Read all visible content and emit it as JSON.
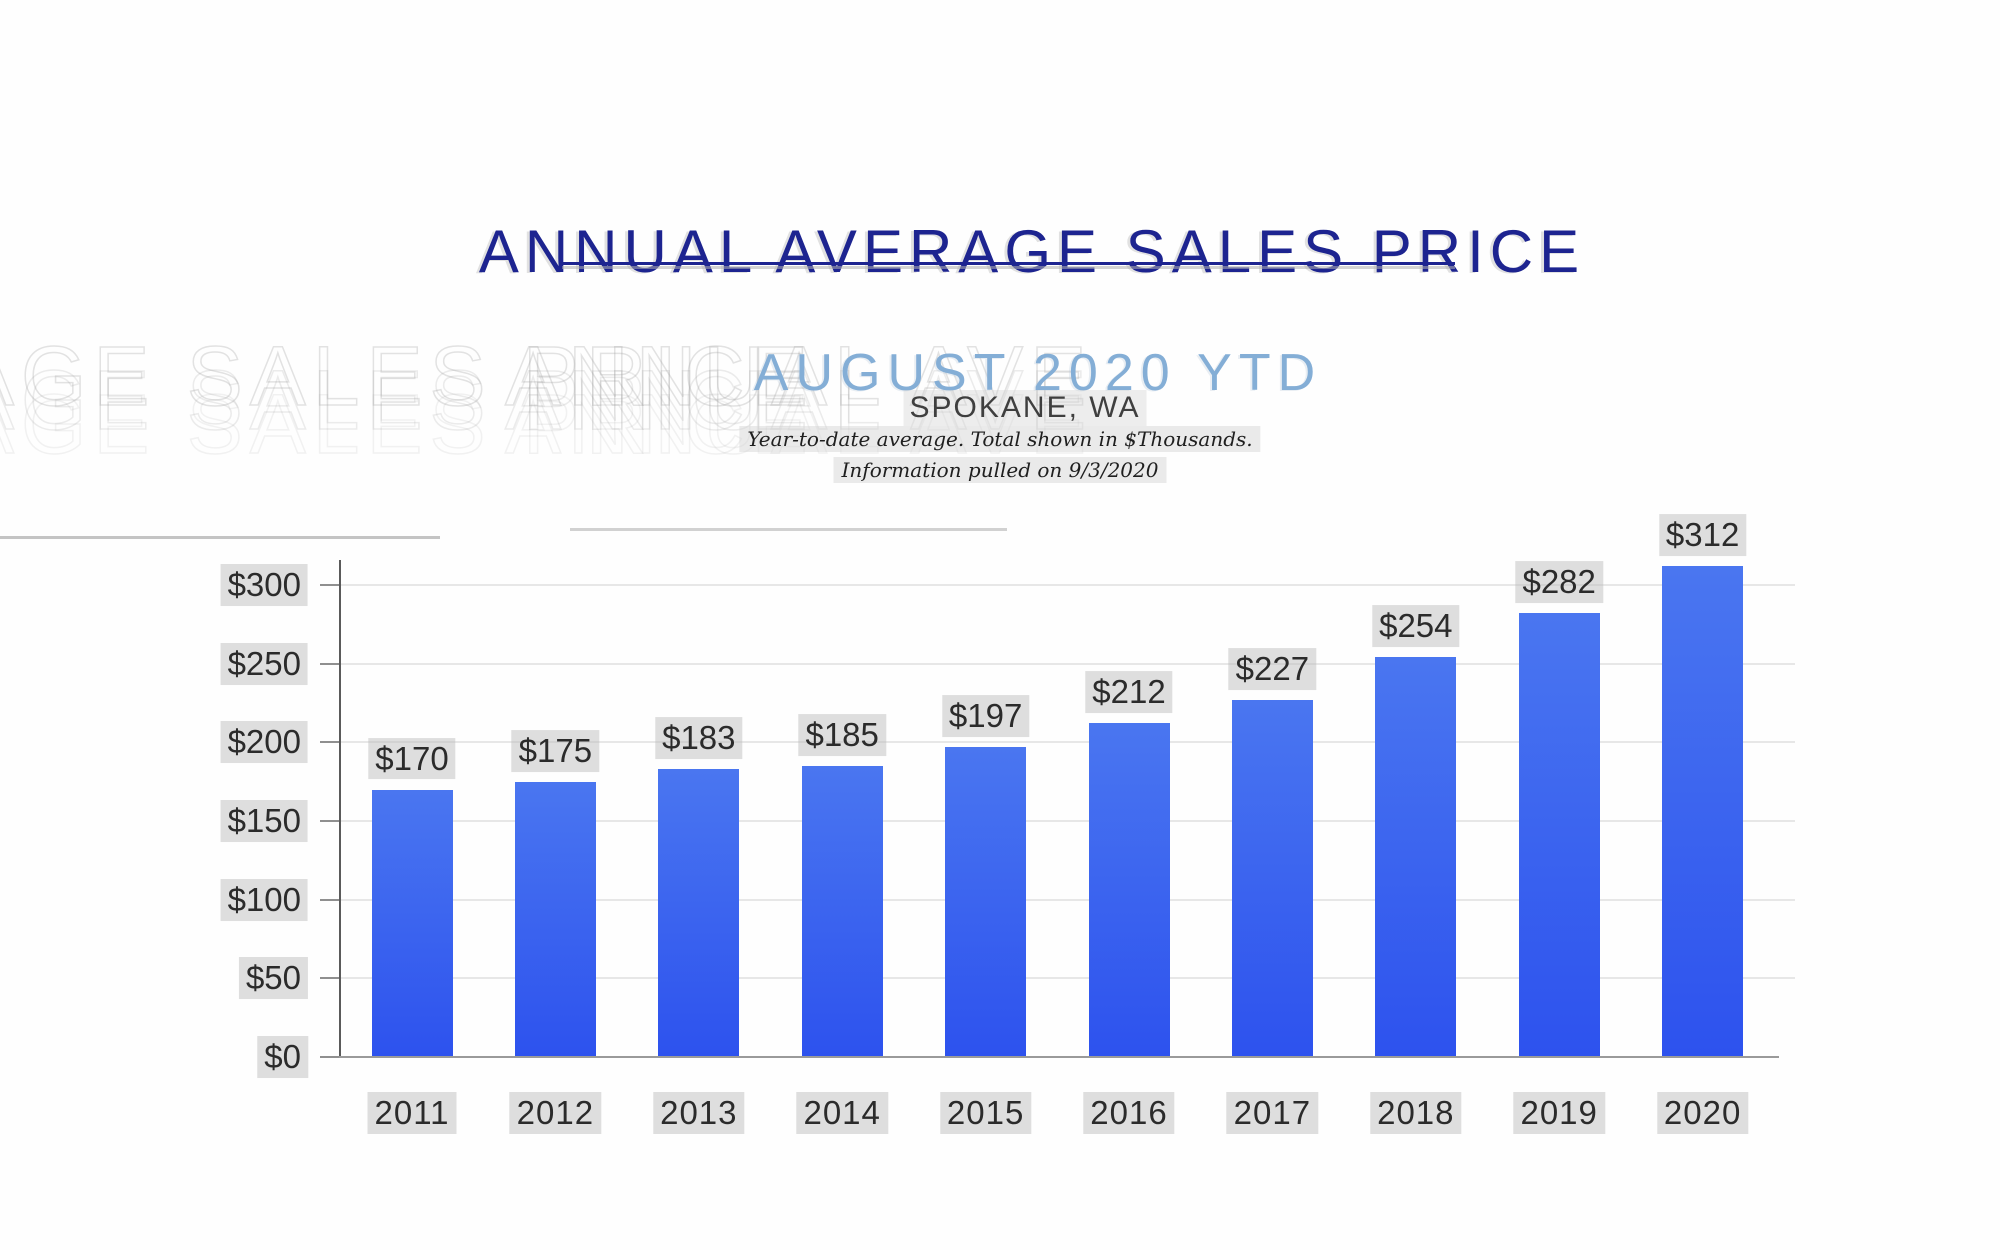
{
  "header": {
    "title": "ANNUAL AVERAGE SALES PRICE",
    "subtitle": "AUGUST 2020 YTD",
    "location": "SPOKANE, WA",
    "note_line1": "Year-to-date average.  Total shown in $Thousands.",
    "note_line2": "Information pulled on 9/3/2020"
  },
  "watermark": {
    "fragment_left": "AGE SALES PRICE",
    "fragment_right": "ANNUAL AVE"
  },
  "colors": {
    "title_navy": "#1d2490",
    "subtitle_blue": "#84aed6",
    "location_gray": "#3f3f3f",
    "bar_gradient_top": "#4a76f0",
    "bar_gradient_bottom": "#2d52ee",
    "label_highlight_gray": "#d7d7d7",
    "gridline_gray": "#e7e7e7",
    "axis_gray": "#5a5a5a",
    "baseline_gray": "#9a9a9a",
    "watermark_gray": "#c9c9c9"
  },
  "chart_data": {
    "type": "bar",
    "title": "ANNUAL AVERAGE SALES PRICE",
    "subtitle": "AUGUST 2020 YTD",
    "region": "SPOKANE, WA",
    "units": "$Thousands",
    "categories": [
      "2011",
      "2012",
      "2013",
      "2014",
      "2015",
      "2016",
      "2017",
      "2018",
      "2019",
      "2020"
    ],
    "values": [
      170,
      175,
      183,
      185,
      197,
      212,
      227,
      254,
      282,
      312
    ],
    "value_labels": [
      "$170",
      "$175",
      "$183",
      "$185",
      "$197",
      "$212",
      "$227",
      "$254",
      "$282",
      "$312"
    ],
    "y_ticks": [
      0,
      50,
      100,
      150,
      200,
      250,
      300
    ],
    "y_tick_labels": [
      "$0",
      "$50",
      "$100",
      "$150",
      "$200",
      "$250",
      "$300"
    ],
    "ylim": [
      0,
      315
    ],
    "grid": "horizontal",
    "legend": "none"
  }
}
